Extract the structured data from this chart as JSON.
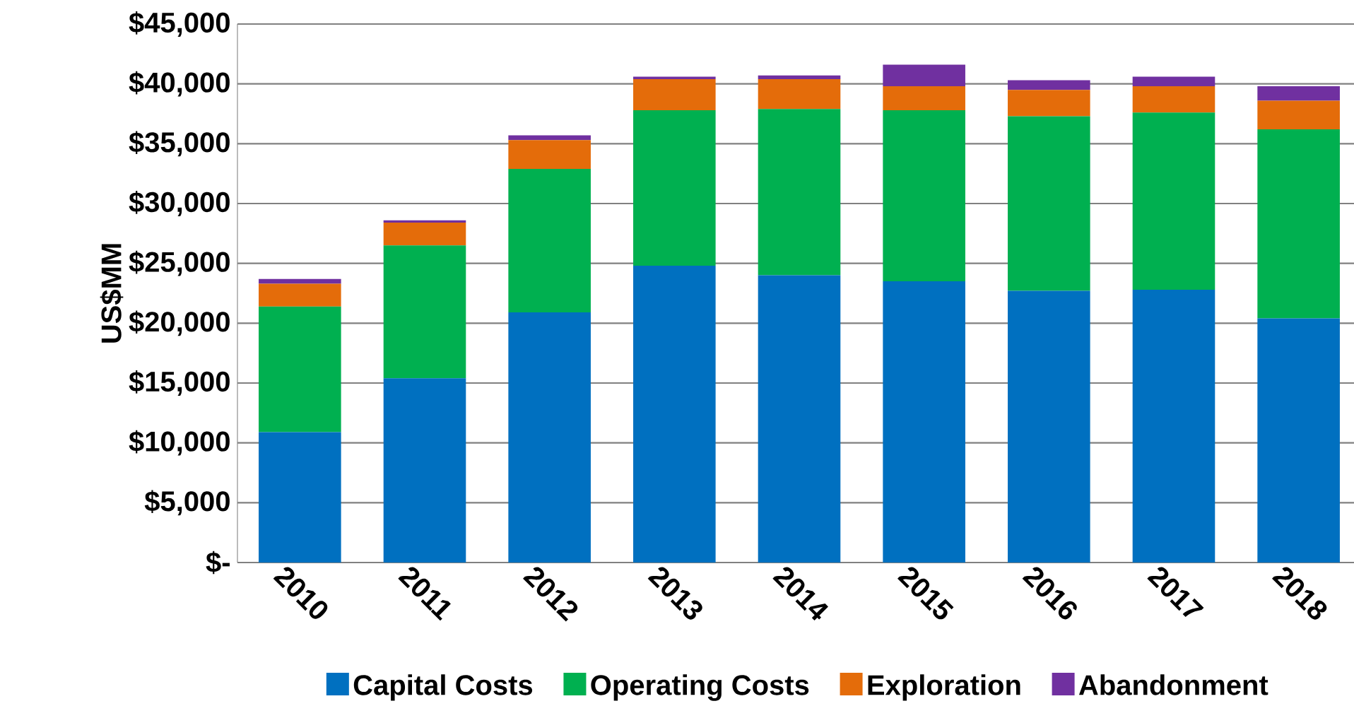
{
  "chart_data": {
    "type": "bar",
    "stacked": true,
    "ylabel": "US$MM",
    "categories": [
      "2010",
      "2011",
      "2012",
      "2013",
      "2014",
      "2015",
      "2016",
      "2017",
      "2018"
    ],
    "series": [
      {
        "name": "Capital Costs",
        "color": "#0070c0",
        "values": [
          10900,
          15400,
          20900,
          24800,
          24000,
          23500,
          22700,
          22800,
          20400
        ]
      },
      {
        "name": "Operating Costs",
        "color": "#00b050",
        "values": [
          10500,
          11100,
          12000,
          13000,
          13900,
          14300,
          14600,
          14800,
          15800
        ]
      },
      {
        "name": "Exploration",
        "color": "#e46c0a",
        "values": [
          1900,
          1900,
          2400,
          2600,
          2500,
          2000,
          2200,
          2200,
          2400
        ]
      },
      {
        "name": "Abandonment",
        "color": "#7030a0",
        "values": [
          400,
          200,
          400,
          200,
          300,
          1800,
          800,
          800,
          1200
        ]
      }
    ],
    "ylim": [
      0,
      45000
    ],
    "yticks": [
      {
        "value": 0,
        "label": "$-"
      },
      {
        "value": 5000,
        "label": "$5,000"
      },
      {
        "value": 10000,
        "label": "$10,000"
      },
      {
        "value": 15000,
        "label": "$15,000"
      },
      {
        "value": 20000,
        "label": "$20,000"
      },
      {
        "value": 25000,
        "label": "$25,000"
      },
      {
        "value": 30000,
        "label": "$30,000"
      },
      {
        "value": 35000,
        "label": "$35,000"
      },
      {
        "value": 40000,
        "label": "$40,000"
      },
      {
        "value": 45000,
        "label": "$45,000"
      }
    ],
    "grid": "y",
    "legend": "bottom"
  }
}
